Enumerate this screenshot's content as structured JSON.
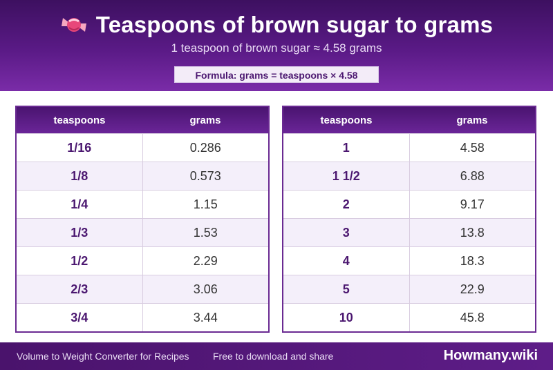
{
  "header": {
    "title": "Teaspoons of brown sugar to grams",
    "subtitle": "1 teaspoon of brown sugar ≈ 4.58 grams",
    "formula": "Formula: grams = teaspoons × 4.58",
    "icon": "candy-icon"
  },
  "tables": [
    {
      "columns": [
        "teaspoons",
        "grams"
      ],
      "rows": [
        {
          "tsp": "1/16",
          "grams": "0.286"
        },
        {
          "tsp": "1/8",
          "grams": "0.573"
        },
        {
          "tsp": "1/4",
          "grams": "1.15"
        },
        {
          "tsp": "1/3",
          "grams": "1.53"
        },
        {
          "tsp": "1/2",
          "grams": "2.29"
        },
        {
          "tsp": "2/3",
          "grams": "3.06"
        },
        {
          "tsp": "3/4",
          "grams": "3.44"
        }
      ]
    },
    {
      "columns": [
        "teaspoons",
        "grams"
      ],
      "rows": [
        {
          "tsp": "1",
          "grams": "4.58"
        },
        {
          "tsp": "1 1/2",
          "grams": "6.88"
        },
        {
          "tsp": "2",
          "grams": "9.17"
        },
        {
          "tsp": "3",
          "grams": "13.8"
        },
        {
          "tsp": "4",
          "grams": "18.3"
        },
        {
          "tsp": "5",
          "grams": "22.9"
        },
        {
          "tsp": "10",
          "grams": "45.8"
        }
      ]
    }
  ],
  "footer": {
    "left": "Volume to Weight Converter for Recipes",
    "middle": "Free to download and share",
    "brand": "Howmany.wiki"
  },
  "colors": {
    "header_purple": "#5a1a86",
    "accent_text": "#4b1770",
    "stripe": "#f4effa"
  }
}
